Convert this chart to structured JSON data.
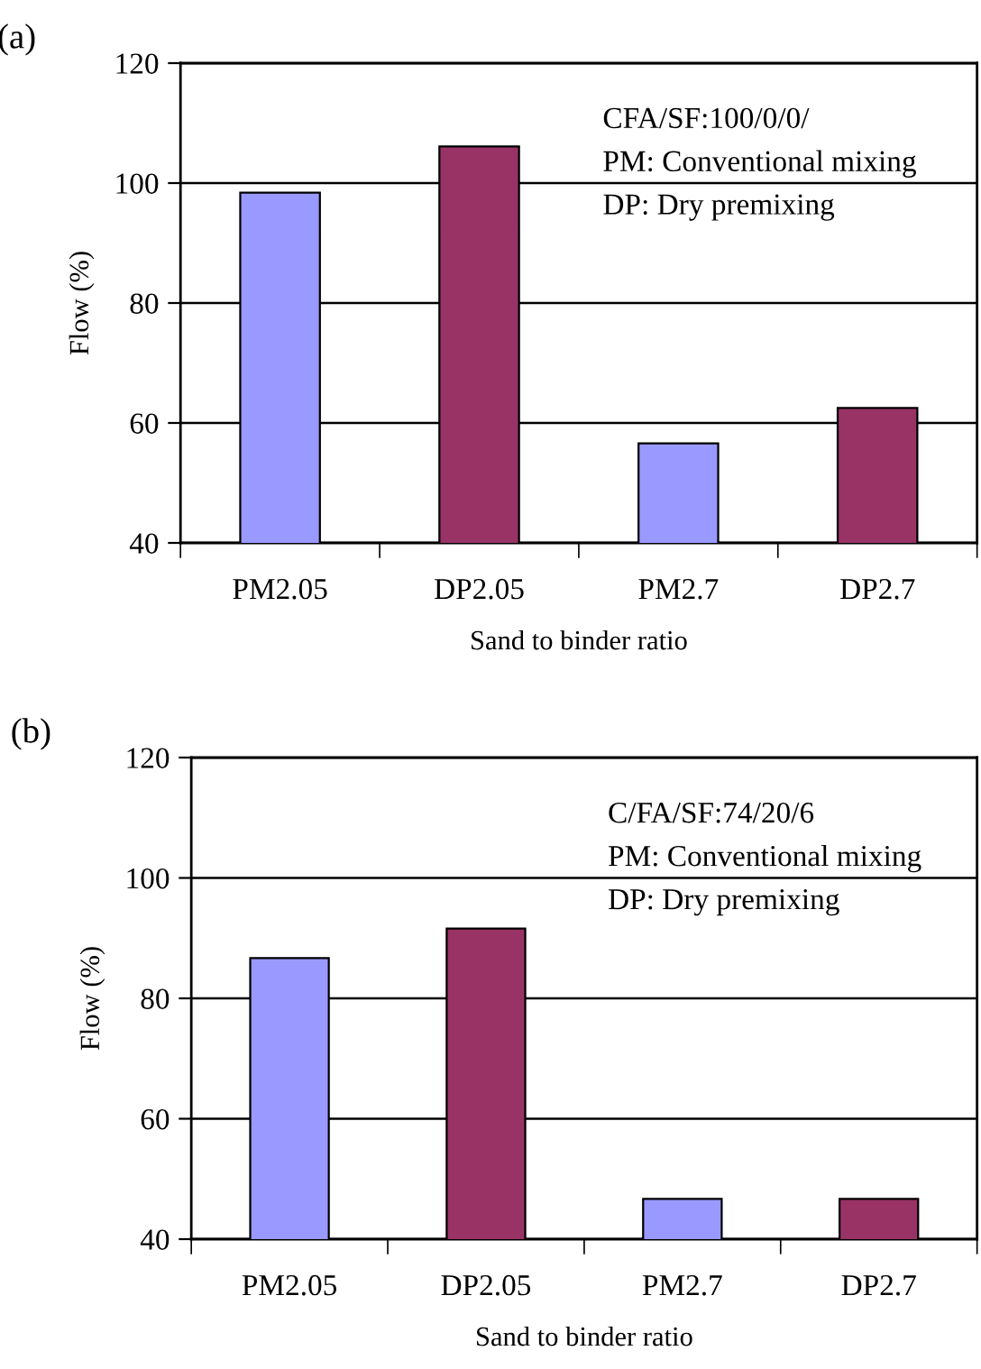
{
  "chart_data": [
    {
      "type": "bar",
      "title": "(a)",
      "categories": [
        "PM2.05",
        "DP2.05",
        "PM2.7",
        "DP2.7"
      ],
      "values": [
        98.4,
        106.1,
        56.6,
        62.5
      ],
      "colors": [
        "#9999ff",
        "#993366",
        "#9999ff",
        "#993366"
      ],
      "xlabel": "Sand to binder ratio",
      "ylabel": "Flow (%)",
      "ylim": [
        40,
        120
      ],
      "yticks": [
        40,
        60,
        80,
        100,
        120
      ],
      "grid": "y",
      "legend": false,
      "annotations": [
        "CFA/SF:100/0/0/",
        "PM: Conventional mixing",
        "DP: Dry premixing"
      ]
    },
    {
      "type": "bar",
      "title": "(b)",
      "categories": [
        "PM2.05",
        "DP2.05",
        "PM2.7",
        "DP2.7"
      ],
      "values": [
        86.7,
        91.6,
        46.7,
        46.7
      ],
      "colors": [
        "#9999ff",
        "#993366",
        "#9999ff",
        "#993366"
      ],
      "xlabel": "Sand to binder ratio",
      "ylabel": "Flow (%)",
      "ylim": [
        40,
        120
      ],
      "yticks": [
        40,
        60,
        80,
        100,
        120
      ],
      "grid": "y",
      "legend": false,
      "annotations": [
        "C/FA/SF:74/20/6",
        "PM: Conventional mixing",
        "DP: Dry premixing"
      ]
    }
  ]
}
